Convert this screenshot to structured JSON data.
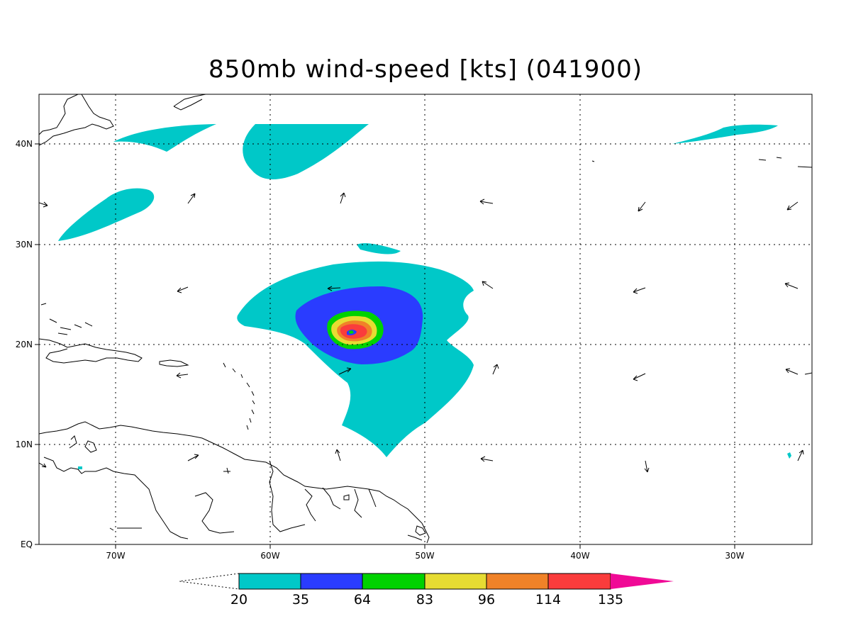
{
  "title": "850mb wind-speed [kts] (041900)",
  "axes": {
    "lon_labels": [
      "70W",
      "60W",
      "50W",
      "40W",
      "30W"
    ],
    "lat_labels": [
      "40N",
      "30N",
      "20N",
      "10N",
      "EQ"
    ],
    "grid": "dotted"
  },
  "colorbar": {
    "levels": [
      "20",
      "35",
      "64",
      "83",
      "96",
      "114",
      "135"
    ],
    "colors": [
      "#00c8c8",
      "#2a3cff",
      "#00d200",
      "#e6dc32",
      "#f08228",
      "#fa3c3c",
      "#f00a96"
    ]
  },
  "map": {
    "region": "Tropical Atlantic",
    "lon_range": [
      "75W",
      "25W"
    ],
    "lat_range": [
      "EQ",
      "45N"
    ],
    "colors": {
      "coastline": "#000000",
      "cyan": "#00c8c8",
      "blue": "#2a3cff",
      "green": "#00d200",
      "yellow": "#e6dc32",
      "orange": "#f08228",
      "red": "#fa3c3c"
    }
  }
}
